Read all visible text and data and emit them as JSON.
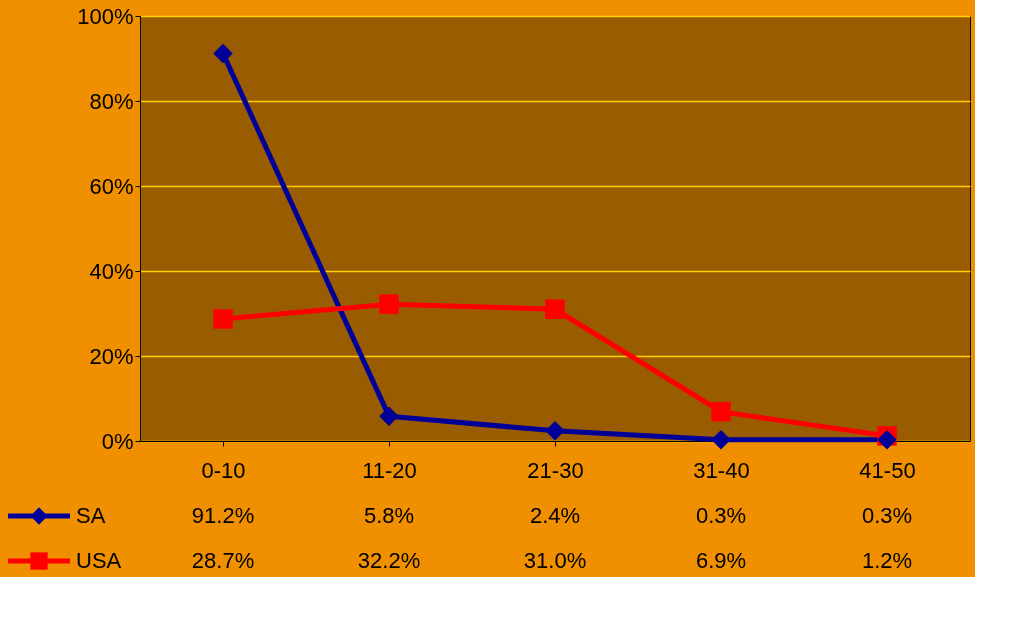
{
  "chart_data": {
    "type": "line",
    "categories": [
      "0-10",
      "11-20",
      "21-30",
      "31-40",
      "41-50"
    ],
    "series": [
      {
        "name": "SA",
        "color": "#000099",
        "marker": "diamond",
        "values": [
          91.2,
          5.8,
          2.4,
          0.3,
          0.3
        ],
        "value_labels": [
          "91.2%",
          "5.8%",
          "2.4%",
          "0.3%",
          "0.3%"
        ]
      },
      {
        "name": "USA",
        "color": "#ff0000",
        "marker": "square",
        "values": [
          28.7,
          32.2,
          31.0,
          6.9,
          1.2
        ],
        "value_labels": [
          "28.7%",
          "32.2%",
          "31.0%",
          "6.9%",
          "1.2%"
        ]
      }
    ],
    "ylim": [
      0,
      100
    ],
    "yticks": [
      {
        "value": 0,
        "label": "0%"
      },
      {
        "value": 20,
        "label": "20%"
      },
      {
        "value": 40,
        "label": "40%"
      },
      {
        "value": 60,
        "label": "60%"
      },
      {
        "value": 80,
        "label": "80%"
      },
      {
        "value": 100,
        "label": "100%"
      }
    ],
    "grid": "y",
    "legend": "bottom",
    "line_style": "solid"
  }
}
